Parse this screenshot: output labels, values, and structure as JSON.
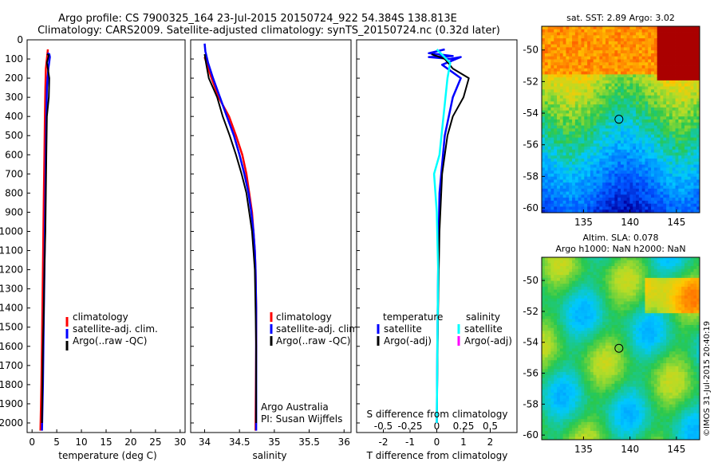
{
  "header": {
    "line1": "Argo profile: CS 7900325_164 23-Jul-2015 20150724_922 54.384S 138.813E",
    "line2": "Climatology: CARS2009. Satellite-adjusted climatology: synTS_20150724.nc (0.32d later)"
  },
  "colors": {
    "climatology": "#ff0000",
    "satellite": "#0000ff",
    "argo": "#000000",
    "satellite_light": "#00ffff",
    "argo_adj": "#ff00ff"
  },
  "chart_data": [
    {
      "type": "line",
      "id": "temperature",
      "xlabel": "temperature (deg C)",
      "ylabel": "",
      "ylim": [
        0,
        2050
      ],
      "y_reversed": true,
      "xlim": [
        -1,
        31
      ],
      "xticks": [
        0,
        5,
        10,
        15,
        20,
        25,
        30
      ],
      "yticks": [
        0,
        100,
        200,
        300,
        400,
        500,
        600,
        700,
        800,
        900,
        1000,
        1100,
        1200,
        1300,
        1400,
        1500,
        1600,
        1700,
        1800,
        1900,
        2000
      ],
      "legend": {
        "position": "center-right",
        "items": [
          "climatology",
          "satellite-adj. clim.",
          "Argo(..raw -QC)"
        ]
      },
      "series": [
        {
          "name": "climatology",
          "color": "#ff0000",
          "points": [
            [
              3.2,
              50
            ],
            [
              2.8,
              150
            ],
            [
              2.7,
              250
            ],
            [
              2.6,
              400
            ],
            [
              2.5,
              600
            ],
            [
              2.4,
              800
            ],
            [
              2.3,
              1000
            ],
            [
              2.2,
              1200
            ],
            [
              2.1,
              1400
            ],
            [
              2.0,
              1600
            ],
            [
              1.9,
              1800
            ],
            [
              1.7,
              2040
            ]
          ]
        },
        {
          "name": "satellite-adj. clim.",
          "color": "#0000ff",
          "points": [
            [
              3.1,
              70
            ],
            [
              3.5,
              75
            ],
            [
              3.6,
              90
            ],
            [
              3.3,
              150
            ],
            [
              3.0,
              250
            ],
            [
              2.9,
              400
            ],
            [
              2.8,
              600
            ],
            [
              2.7,
              800
            ],
            [
              2.6,
              1000
            ],
            [
              2.5,
              1200
            ],
            [
              2.4,
              1400
            ],
            [
              2.3,
              1600
            ],
            [
              2.2,
              1800
            ],
            [
              2.0,
              2040
            ]
          ]
        },
        {
          "name": "Argo(..raw -QC)",
          "color": "#000000",
          "points": [
            [
              3.0,
              75
            ],
            [
              3.4,
              80
            ],
            [
              3.0,
              120
            ],
            [
              3.2,
              150
            ],
            [
              3.5,
              200
            ],
            [
              3.4,
              300
            ],
            [
              3.0,
              400
            ],
            [
              2.9,
              600
            ],
            [
              2.8,
              800
            ],
            [
              2.7,
              1000
            ],
            [
              2.5,
              1200
            ],
            [
              2.4,
              1400
            ],
            [
              2.2,
              1600
            ],
            [
              2.1,
              1800
            ],
            [
              2.0,
              2000
            ]
          ]
        }
      ]
    },
    {
      "type": "line",
      "id": "salinity",
      "xlabel": "salinity",
      "ylabel": "",
      "ylim": [
        0,
        2050
      ],
      "y_reversed": true,
      "xlim": [
        33.8,
        36.1
      ],
      "xticks": [
        34,
        34.5,
        35,
        35.5,
        36
      ],
      "legend": {
        "position": "center-right",
        "items": [
          "climatology",
          "satellite-adj. clim.",
          "Argo(..raw -QC)"
        ]
      },
      "annotations": [
        "Argo Australia",
        "PI: Susan Wijffels"
      ],
      "series": [
        {
          "name": "climatology",
          "color": "#ff0000",
          "points": [
            [
              34.0,
              90
            ],
            [
              34.1,
              200
            ],
            [
              34.2,
              300
            ],
            [
              34.35,
              400
            ],
            [
              34.45,
              500
            ],
            [
              34.54,
              600
            ],
            [
              34.6,
              700
            ],
            [
              34.64,
              800
            ],
            [
              34.68,
              900
            ],
            [
              34.7,
              1000
            ],
            [
              34.72,
              1100
            ],
            [
              34.73,
              1200
            ],
            [
              34.74,
              1400
            ],
            [
              34.74,
              1600
            ],
            [
              34.73,
              2040
            ]
          ]
        },
        {
          "name": "satellite-adj. clim.",
          "color": "#0000ff",
          "points": [
            [
              34.0,
              20
            ],
            [
              34.01,
              60
            ],
            [
              34.05,
              120
            ],
            [
              34.12,
              200
            ],
            [
              34.22,
              300
            ],
            [
              34.32,
              400
            ],
            [
              34.42,
              500
            ],
            [
              34.5,
              600
            ],
            [
              34.57,
              700
            ],
            [
              34.63,
              800
            ],
            [
              34.67,
              900
            ],
            [
              34.7,
              1000
            ],
            [
              34.72,
              1100
            ],
            [
              34.73,
              1200
            ],
            [
              34.74,
              1400
            ],
            [
              34.74,
              1600
            ],
            [
              34.74,
              1800
            ],
            [
              34.74,
              2040
            ]
          ]
        },
        {
          "name": "Argo(..raw -QC)",
          "color": "#000000",
          "points": [
            [
              34.0,
              75
            ],
            [
              34.02,
              120
            ],
            [
              34.06,
              200
            ],
            [
              34.12,
              250
            ],
            [
              34.18,
              300
            ],
            [
              34.26,
              400
            ],
            [
              34.36,
              500
            ],
            [
              34.45,
              600
            ],
            [
              34.53,
              700
            ],
            [
              34.6,
              800
            ],
            [
              34.64,
              900
            ],
            [
              34.68,
              1000
            ],
            [
              34.7,
              1100
            ],
            [
              34.72,
              1200
            ],
            [
              34.73,
              1400
            ],
            [
              34.74,
              1600
            ],
            [
              34.74,
              1800
            ],
            [
              34.74,
              2000
            ]
          ]
        }
      ]
    },
    {
      "type": "line",
      "id": "difference",
      "xlabel": "T difference from climatology",
      "xlabel_top": "S difference from climatology",
      "ylim": [
        0,
        2050
      ],
      "y_reversed": true,
      "xlim": [
        -3,
        3
      ],
      "xticks": [
        -2,
        -1,
        0,
        1,
        2
      ],
      "xticks_s": [
        -0.5,
        -0.25,
        0,
        0.25,
        0.5
      ],
      "legend": {
        "position": "center",
        "temperature_title": "temperature",
        "salinity_title": "salinity",
        "items": [
          "satellite",
          "Argo(-adj)",
          "satellite",
          "Argo(-adj)"
        ]
      },
      "series": [
        {
          "name": "satellite",
          "color": "#0000ff",
          "points": [
            [
              0.3,
              50
            ],
            [
              -0.3,
              70
            ],
            [
              0.6,
              85
            ],
            [
              -0.3,
              90
            ],
            [
              0.5,
              100
            ],
            [
              0.9,
              90
            ],
            [
              0.2,
              130
            ],
            [
              0.9,
              200
            ],
            [
              0.6,
              300
            ],
            [
              0.3,
              500
            ],
            [
              0.1,
              800
            ],
            [
              0.05,
              1200
            ],
            [
              0.02,
              1600
            ],
            [
              0,
              2000
            ]
          ]
        },
        {
          "name": "Argo(-adj)",
          "color": "#000000",
          "points": [
            [
              -0.2,
              75
            ],
            [
              0.3,
              100
            ],
            [
              0.6,
              150
            ],
            [
              1.2,
              200
            ],
            [
              1.0,
              300
            ],
            [
              0.6,
              400
            ],
            [
              0.4,
              500
            ],
            [
              0.2,
              700
            ],
            [
              0.1,
              1000
            ],
            [
              0.05,
              1400
            ],
            [
              0,
              2000
            ]
          ]
        },
        {
          "name": "satellite (S)",
          "color": "#00ffff",
          "points": [
            [
              0.0,
              50
            ],
            [
              0.5,
              120
            ],
            [
              0.4,
              200
            ],
            [
              0.25,
              400
            ],
            [
              0.1,
              600
            ],
            [
              -0.1,
              700
            ],
            [
              0.0,
              900
            ],
            [
              0.05,
              1200
            ],
            [
              0.02,
              1600
            ],
            [
              0,
              2000
            ]
          ]
        }
      ]
    },
    {
      "type": "heatmap",
      "id": "sst-map",
      "title": "sat. SST: 2.89 Argo: 3.02",
      "xlim": [
        130.5,
        147.5
      ],
      "ylim": [
        -60.3,
        -48.5
      ],
      "xticks": [
        135,
        140,
        145
      ],
      "yticks": [
        -50,
        -52,
        -54,
        -56,
        -58,
        -60
      ],
      "marker": {
        "lon": 138.813,
        "lat": -54.384
      }
    },
    {
      "type": "heatmap",
      "id": "sla-map",
      "title": "Altim. SLA: 0.078",
      "subtitle": "Argo h1000: NaN h2000: NaN",
      "xlim": [
        130.5,
        147.5
      ],
      "ylim": [
        -60.3,
        -48.5
      ],
      "xticks": [
        135,
        140,
        145
      ],
      "yticks": [
        -50,
        -52,
        -54,
        -56,
        -58,
        -60
      ],
      "marker": {
        "lon": 138.813,
        "lat": -54.384
      }
    }
  ],
  "credit": "©IMOS 31-Jul-2015 20:40:19"
}
